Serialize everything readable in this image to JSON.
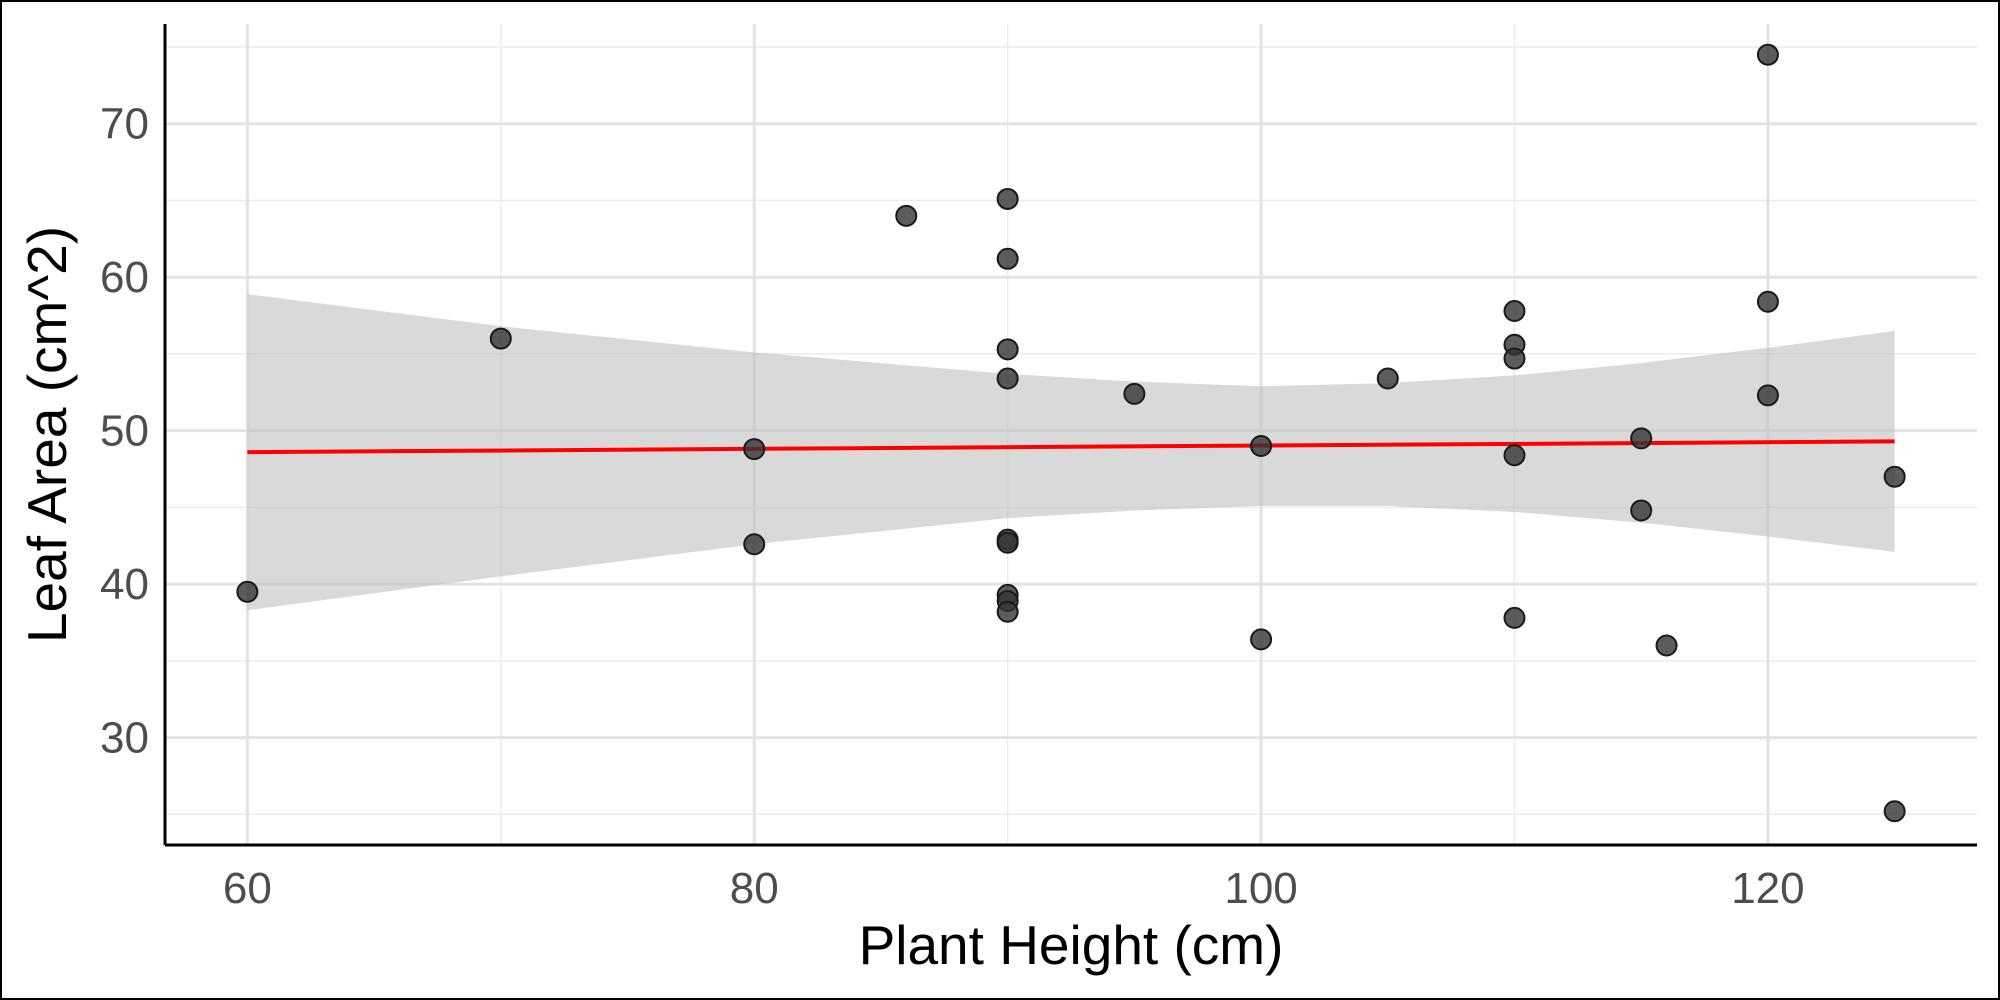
{
  "chart_data": {
    "type": "scatter",
    "title": "",
    "xlabel": "Plant Height (cm)",
    "ylabel": "Leaf Area (cm^2)",
    "xlim": [
      56.75,
      128.25
    ],
    "ylim": [
      23.0,
      76.5
    ],
    "xticks": [
      60,
      80,
      100,
      120
    ],
    "yticks": [
      30,
      40,
      50,
      60,
      70
    ],
    "x_tick_labels": [
      "60",
      "80",
      "100",
      "120"
    ],
    "y_tick_labels": [
      "30",
      "40",
      "50",
      "60",
      "70"
    ],
    "grid": true,
    "legend": "none",
    "points": [
      {
        "x": 60,
        "y": 39.5
      },
      {
        "x": 70,
        "y": 56.0
      },
      {
        "x": 80,
        "y": 48.8
      },
      {
        "x": 80,
        "y": 42.6
      },
      {
        "x": 86,
        "y": 64.0
      },
      {
        "x": 90,
        "y": 65.1
      },
      {
        "x": 90,
        "y": 61.2
      },
      {
        "x": 90,
        "y": 55.3
      },
      {
        "x": 90,
        "y": 53.4
      },
      {
        "x": 90,
        "y": 42.9
      },
      {
        "x": 90,
        "y": 42.7
      },
      {
        "x": 90,
        "y": 39.3
      },
      {
        "x": 90,
        "y": 38.9
      },
      {
        "x": 90,
        "y": 38.2
      },
      {
        "x": 95,
        "y": 52.4
      },
      {
        "x": 100,
        "y": 49.0
      },
      {
        "x": 100,
        "y": 36.4
      },
      {
        "x": 105,
        "y": 53.4
      },
      {
        "x": 110,
        "y": 57.8
      },
      {
        "x": 110,
        "y": 55.6
      },
      {
        "x": 110,
        "y": 54.7
      },
      {
        "x": 110,
        "y": 48.4
      },
      {
        "x": 110,
        "y": 37.8
      },
      {
        "x": 115,
        "y": 49.5
      },
      {
        "x": 115,
        "y": 44.8
      },
      {
        "x": 116,
        "y": 36.0
      },
      {
        "x": 120,
        "y": 74.5
      },
      {
        "x": 120,
        "y": 58.4
      },
      {
        "x": 120,
        "y": 52.3
      },
      {
        "x": 125,
        "y": 47.0
      },
      {
        "x": 125,
        "y": 25.2
      }
    ],
    "fit_line": {
      "x": [
        60,
        125
      ],
      "y": [
        48.6,
        49.3
      ],
      "color": "#ff0000"
    },
    "confidence_band": {
      "x": [
        60,
        70,
        80,
        90,
        95,
        100,
        105,
        110,
        115,
        120,
        125
      ],
      "lower": [
        38.3,
        40.5,
        42.6,
        44.3,
        44.8,
        45.1,
        45.1,
        44.7,
        44.0,
        43.1,
        42.1
      ],
      "upper": [
        58.9,
        56.8,
        55.1,
        53.7,
        53.2,
        52.9,
        53.1,
        53.6,
        54.4,
        55.4,
        56.5
      ],
      "color": "#bfbfbf"
    },
    "point_color": "#333333"
  }
}
